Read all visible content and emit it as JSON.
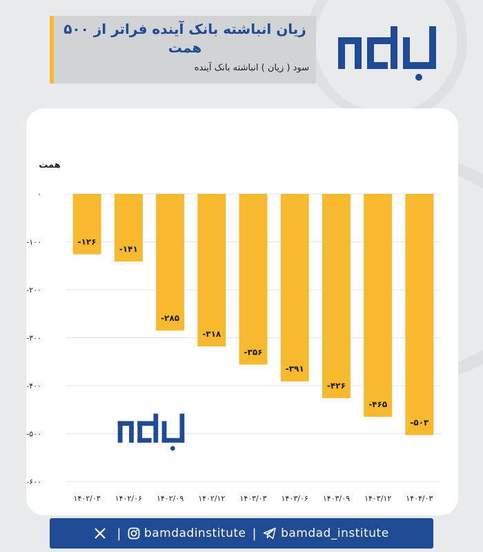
{
  "header": {
    "title": "زیان انباشته بانک آینده فراتر از ۵۰۰ همت",
    "subtitle": "سود ( زیان ) انباشته بانک آینده"
  },
  "brand": {
    "logo_text": "بامداد"
  },
  "footer": {
    "x_handle_icon": "x-icon",
    "instagram_icon": "instagram-icon",
    "instagram_handle": "bamdadinstitute",
    "telegram_icon": "telegram-icon",
    "telegram_handle": "bamdad_institute"
  },
  "colors": {
    "bar": "#f7b92d",
    "brand_blue": "#1e4b93",
    "accent": "#f7b92d"
  },
  "chart_data": {
    "type": "bar",
    "ylabel": "همت",
    "categories": [
      "۱۴۰۲/۰۳",
      "۱۴۰۲/۰۶",
      "۱۴۰۲/۰۹",
      "۱۴۰۲/۱۲",
      "۱۴۰۳/۰۳",
      "۱۴۰۳/۰۶",
      "۱۴۰۳/۰۹",
      "۱۴۰۳/۱۲",
      "۱۴۰۴/۰۳"
    ],
    "values": [
      -126,
      -141,
      -285,
      -318,
      -356,
      -391,
      -426,
      -465,
      -503
    ],
    "value_labels": [
      "-۱۲۶",
      "-۱۴۱",
      "-۲۸۵",
      "-۳۱۸",
      "-۳۵۶",
      "-۳۹۱",
      "-۴۲۶",
      "-۴۶۵",
      "-۵۰۳"
    ],
    "yticks": [
      0,
      -100,
      -200,
      -300,
      -400,
      -500,
      -600
    ],
    "ytick_labels": [
      "۰",
      "-۱۰۰",
      "-۲۰۰",
      "-۳۰۰",
      "-۴۰۰",
      "-۵۰۰",
      "-۶۰۰"
    ],
    "ylim": [
      -600,
      0
    ],
    "grid": true,
    "legend": "none"
  }
}
